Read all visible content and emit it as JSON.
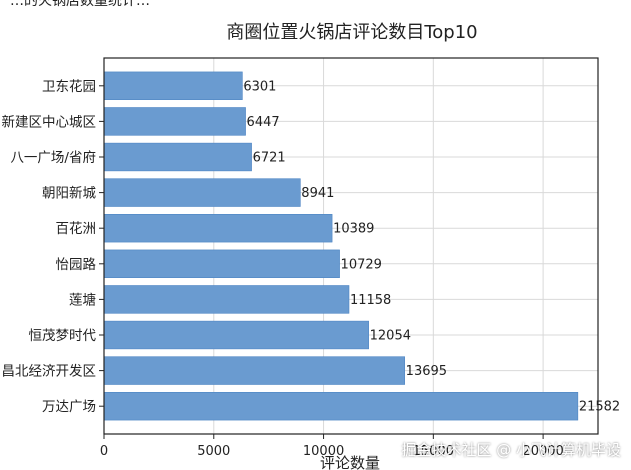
{
  "header_cut_text": "…的火锅店数量统计…",
  "watermark": "掘金技术社区 @ 小飞计算机毕设",
  "colors": {
    "bar": "#6a9bd0",
    "bar_edge": "#4c84c3",
    "grid": "#d9d9d9",
    "axis": "#222222",
    "text": "#222222"
  },
  "chart_data": {
    "type": "bar",
    "orientation": "horizontal",
    "title": "商圈位置火锅店评论数目Top10",
    "xlabel": "评论数量",
    "ylabel": "",
    "xlim": [
      0,
      22500
    ],
    "xticks": [
      0,
      5000,
      10000,
      15000,
      20000
    ],
    "grid": true,
    "categories": [
      "卫东花园",
      "新建区中心城区",
      "八一广场/省府",
      "朝阳新城",
      "百花洲",
      "怡园路",
      "莲塘",
      "恒茂梦时代",
      "昌北经济开发区",
      "万达广场"
    ],
    "values": [
      6301,
      6447,
      6721,
      8941,
      10389,
      10729,
      11158,
      12054,
      13695,
      21582
    ]
  }
}
